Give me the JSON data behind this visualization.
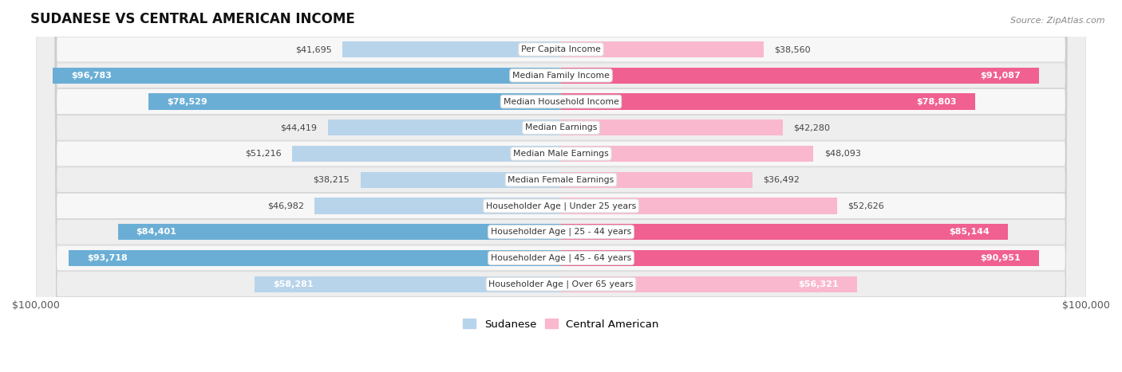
{
  "title": "SUDANESE VS CENTRAL AMERICAN INCOME",
  "source": "Source: ZipAtlas.com",
  "categories": [
    "Per Capita Income",
    "Median Family Income",
    "Median Household Income",
    "Median Earnings",
    "Median Male Earnings",
    "Median Female Earnings",
    "Householder Age | Under 25 years",
    "Householder Age | 25 - 44 years",
    "Householder Age | 45 - 64 years",
    "Householder Age | Over 65 years"
  ],
  "sudanese": [
    41695,
    96783,
    78529,
    44419,
    51216,
    38215,
    46982,
    84401,
    93718,
    58281
  ],
  "central_american": [
    38560,
    91087,
    78803,
    42280,
    48093,
    36492,
    52626,
    85144,
    90951,
    56321
  ],
  "sudanese_labels": [
    "$41,695",
    "$96,783",
    "$78,529",
    "$44,419",
    "$51,216",
    "$38,215",
    "$46,982",
    "$84,401",
    "$93,718",
    "$58,281"
  ],
  "central_american_labels": [
    "$38,560",
    "$91,087",
    "$78,803",
    "$42,280",
    "$48,093",
    "$36,492",
    "$52,626",
    "$85,144",
    "$90,951",
    "$56,321"
  ],
  "blue_light": "#b8d4eb",
  "blue_dark": "#6aaed6",
  "pink_light": "#f9b8ce",
  "pink_dark": "#f06090",
  "bg_color": "#ffffff",
  "row_bg_light": "#f7f7f7",
  "row_bg_dark": "#eeeeee",
  "xmax": 100000,
  "legend_blue": "Sudanese",
  "legend_pink": "Central American",
  "inside_label_threshold": 55000
}
